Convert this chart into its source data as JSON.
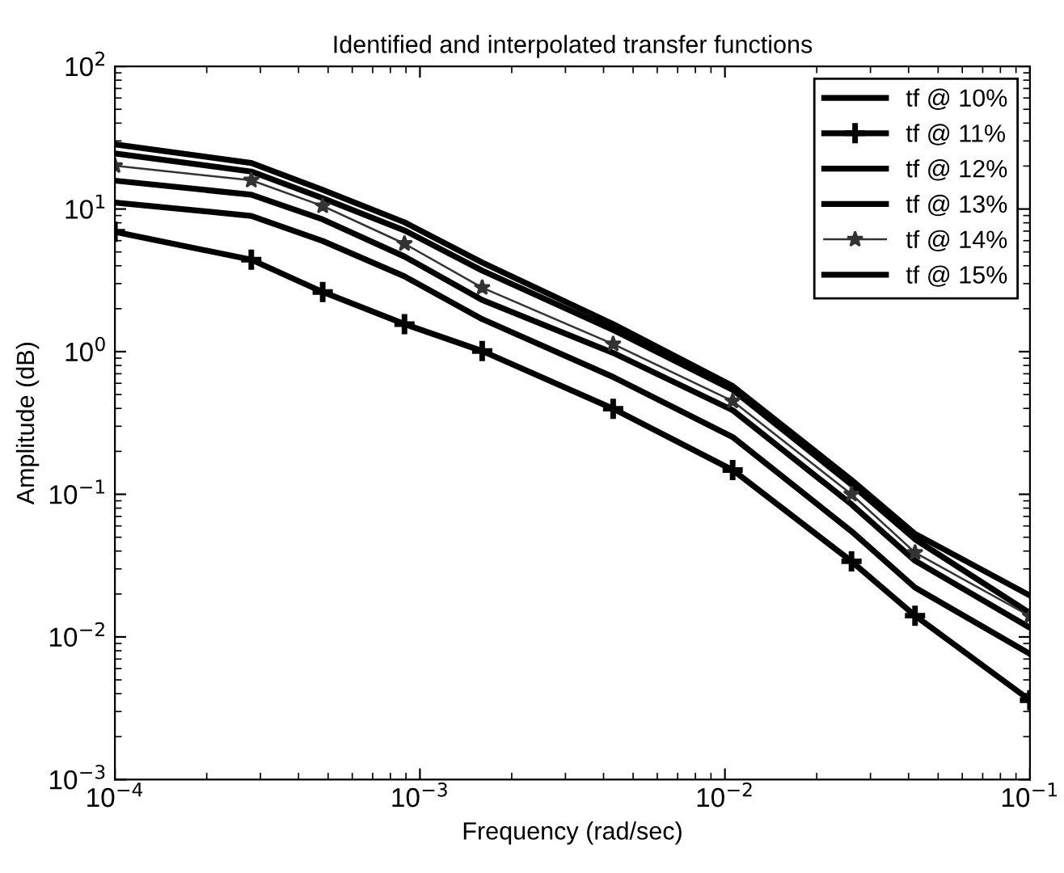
{
  "chart_data": {
    "type": "line",
    "title": "Identified and interpolated transfer functions",
    "xlabel": "Frequency (rad/sec)",
    "ylabel": "Amplitude (dB)",
    "log": "xy",
    "xlim": [
      0.0001,
      0.1
    ],
    "ylim": [
      0.001,
      100
    ],
    "xticks": [
      {
        "value": 0.0001,
        "label": "10$^{−4}$"
      },
      {
        "value": 0.001,
        "label": "10$^{−3}$"
      },
      {
        "value": 0.01,
        "label": "10$^{−2}$"
      },
      {
        "value": 0.1,
        "label": "10$^{−1}$"
      }
    ],
    "yticks": [
      {
        "value": 0.001,
        "label": "10$^{−3}$"
      },
      {
        "value": 0.01,
        "label": "10$^{−2}$"
      },
      {
        "value": 0.1,
        "label": "10$^{−1}$"
      },
      {
        "value": 1,
        "label": "10$^{0}$"
      },
      {
        "value": 10,
        "label": "10$^{1}$"
      },
      {
        "value": 100,
        "label": "10$^{2}$"
      }
    ],
    "grid": false,
    "legend": "top right",
    "line_style": "solid",
    "x": [
      0.0001,
      0.00028,
      0.00048,
      0.00089,
      0.0016,
      0.0043,
      0.0106,
      0.026,
      0.042,
      0.1
    ],
    "series": [
      {
        "name": "tf @ 10%",
        "color": "#000000",
        "marker": "none",
        "values": [
          28.4,
          21.0,
          13.6,
          8.07,
          4.22,
          1.56,
          0.574,
          0.126,
          0.0528,
          0.0195
        ]
      },
      {
        "name": "tf @ 11%",
        "color": "#000000",
        "marker": "cross",
        "values": [
          6.92,
          4.41,
          2.62,
          1.56,
          1.01,
          0.398,
          0.148,
          0.0339,
          0.0141,
          0.0036
        ]
      },
      {
        "name": "tf @ 12%",
        "color": "#000000",
        "marker": "none",
        "values": [
          24.5,
          18.3,
          11.9,
          7.08,
          3.7,
          1.42,
          0.54,
          0.117,
          0.0484,
          0.0147
        ]
      },
      {
        "name": "tf @ 13%",
        "color": "#000000",
        "marker": "none",
        "values": [
          15.8,
          12.6,
          8.45,
          4.64,
          2.3,
          0.98,
          0.389,
          0.085,
          0.0342,
          0.0116
        ]
      },
      {
        "name": "tf @ 14%",
        "color": "#333333",
        "marker": "star",
        "values": [
          20.1,
          15.9,
          10.5,
          5.71,
          2.81,
          1.13,
          0.45,
          0.1,
          0.039,
          0.014
        ]
      },
      {
        "name": "tf @ 15%",
        "color": "#000000",
        "marker": "none",
        "values": [
          11.1,
          8.95,
          5.97,
          3.37,
          1.69,
          0.664,
          0.252,
          0.055,
          0.0222,
          0.0076
        ]
      }
    ]
  }
}
